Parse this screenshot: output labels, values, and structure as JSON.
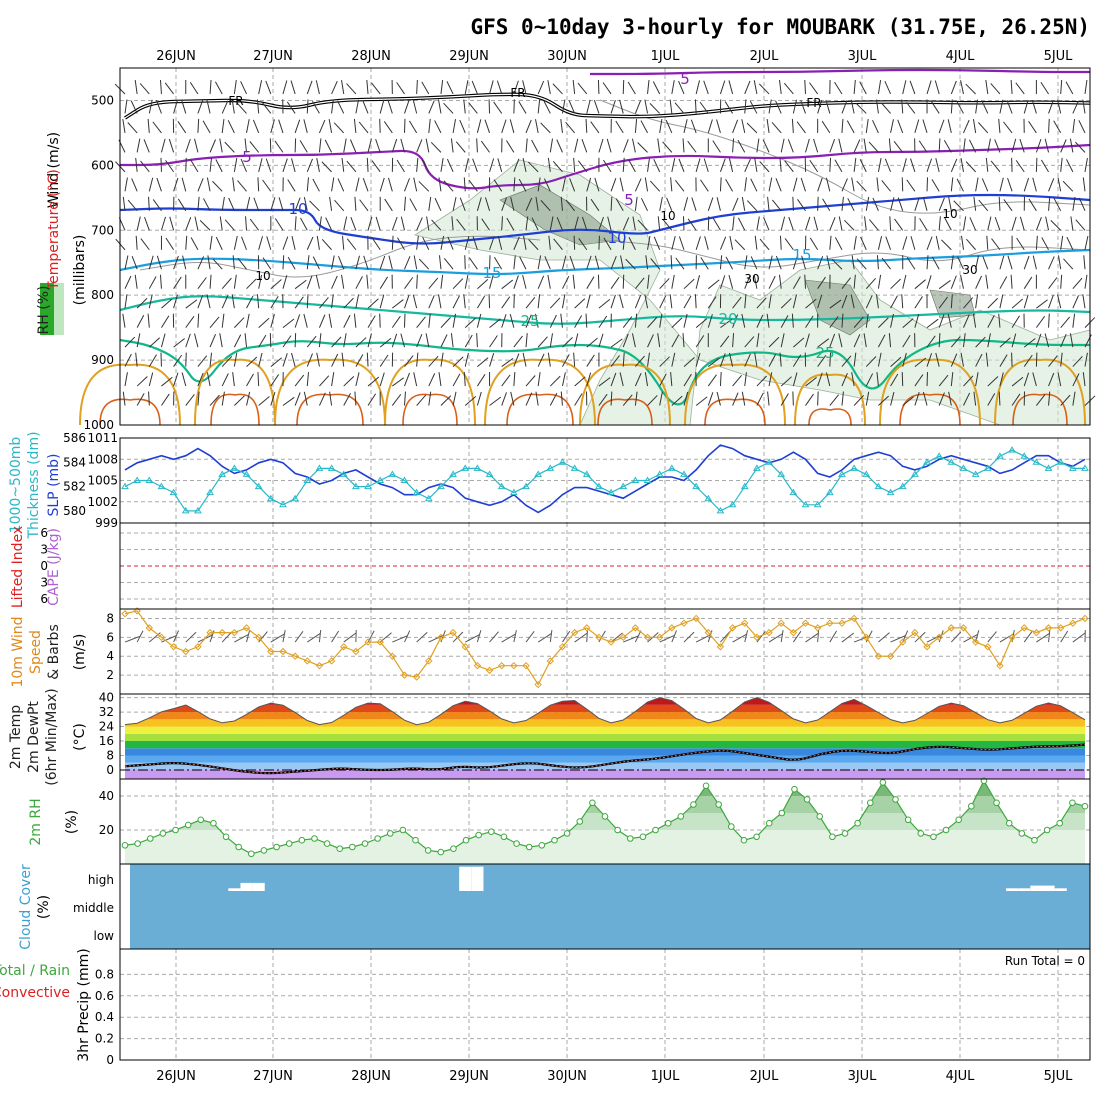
{
  "title": "GFS 0~10day 3-hourly for MOUBARK (31.75E, 26.25N)",
  "dates": [
    "26JUN",
    "27JUN",
    "28JUN",
    "29JUN",
    "30JUN",
    "1JUL",
    "2JUL",
    "3JUL",
    "4JUL",
    "5JUL"
  ],
  "colors": {
    "purple": "#8a1fb4",
    "blue": "#1f3fd4",
    "lightblue": "#1a9ee0",
    "teal": "#16b8a0",
    "green": "#10b888",
    "orange": "#e0a020",
    "darkorange": "#d86018",
    "cyan": "#2ab8c8",
    "rhgreen": "#3da83d",
    "cloud": "#6aaed6",
    "red": "#e02020",
    "gray": "#9a9a9a"
  },
  "panel_labels": {
    "p1_wind": "Wind (m/s)",
    "p1_temp": "Temperature (°C)",
    "p1_rh": "RH (%)",
    "p1_mb": "(millibars)",
    "p2_thick1": "1000~500mb",
    "p2_thick2": "Thickness (dm)",
    "p2_slp": "SLP (mb)",
    "p3_li": "Lifted Index",
    "p3_cape": "CAPE (J/kg)",
    "p4_a": "10m Wind",
    "p4_b": "Speed",
    "p4_c": "& Barbs",
    "p4_unit": "(m/s)",
    "p5_a": "2m Temp",
    "p5_b": "2m DewPt",
    "p5_c": "(6hr Min/Max)",
    "p5_unit": "(°C)",
    "p6_a": "2m RH",
    "p6_unit": "(%)",
    "p7_a": "Cloud Cover",
    "p7_unit": "(%)",
    "p8_a": "Total / Rain",
    "p8_b": "Convective",
    "p8_c": "3hr Precip (mm)",
    "run_total": "Run Total = 0",
    "fr": "FR"
  },
  "chart_data": [
    {
      "panel": "upper-air",
      "type": "contour",
      "yaxis": "pressure (millibars)",
      "yticks": [
        500,
        600,
        700,
        800,
        900,
        1000
      ],
      "ylim": [
        450,
        1000
      ],
      "isotherm_labels": [
        "5",
        "5",
        "5",
        "10",
        "10",
        "15",
        "15",
        "20",
        "25",
        "25"
      ],
      "rh_labels": [
        "10",
        "10",
        "10",
        "30",
        "30"
      ],
      "freezing_level": "FR"
    },
    {
      "panel": "thickness-slp",
      "type": "line",
      "thickness_ylim": [
        579,
        586
      ],
      "thickness_ticks": [
        "580",
        "582",
        "584",
        "586"
      ],
      "slp_ylim": [
        999,
        1011
      ],
      "slp_ticks": [
        "999",
        "1002",
        "1005",
        "1008",
        "1011"
      ],
      "slp": [
        1006.5,
        1007.5,
        1008.0,
        1008.5,
        1008.0,
        1008.5,
        1009.5,
        1008.5,
        1007.0,
        1006.0,
        1006.5,
        1007.5,
        1008.0,
        1007.5,
        1006.0,
        1005.5,
        1004.5,
        1005.0,
        1006.0,
        1006.5,
        1005.5,
        1004.5,
        1004.0,
        1003.0,
        1003.0,
        1004.0,
        1004.5,
        1004.0,
        1002.5,
        1002.0,
        1001.5,
        1002.0,
        1003.0,
        1001.5,
        1000.5,
        1001.5,
        1003.0,
        1004.0,
        1004.0,
        1003.5,
        1003.0,
        1002.5,
        1003.5,
        1004.5,
        1005.5,
        1005.5,
        1005.0,
        1006.5,
        1008.5,
        1010.0,
        1009.5,
        1008.5,
        1008.0,
        1007.5,
        1008.0,
        1009.0,
        1008.0,
        1006.0,
        1005.5,
        1006.5,
        1008.0,
        1008.5,
        1009.0,
        1008.5,
        1007.0,
        1006.5,
        1007.0,
        1008.0,
        1008.5,
        1008.0,
        1007.5,
        1007.0,
        1006.0,
        1006.5,
        1007.5,
        1008.5,
        1008.5,
        1007.5,
        1007.0,
        1008.0
      ],
      "thickness": [
        582.0,
        582.5,
        582.5,
        582.0,
        581.5,
        580.0,
        580.0,
        581.5,
        583.0,
        583.5,
        583.0,
        582.0,
        581.0,
        580.5,
        581.0,
        582.5,
        583.5,
        583.5,
        583.0,
        582.0,
        582.0,
        582.5,
        583.0,
        582.5,
        581.5,
        581.0,
        582.0,
        583.0,
        583.5,
        583.5,
        583.0,
        582.0,
        581.5,
        582.0,
        583.0,
        583.5,
        584.0,
        583.5,
        583.0,
        582.0,
        581.5,
        582.0,
        582.5,
        582.5,
        583.0,
        583.5,
        583.0,
        582.0,
        581.0,
        580.0,
        580.5,
        582.0,
        583.5,
        584.0,
        583.0,
        581.5,
        580.5,
        580.5,
        581.5,
        583.0,
        583.5,
        583.0,
        582.0,
        581.5,
        582.0,
        583.0,
        584.0,
        584.5,
        584.0,
        583.5,
        583.0,
        583.5,
        584.5,
        585.0,
        584.5,
        584.0,
        583.5,
        584.0,
        583.5,
        583.5
      ]
    },
    {
      "panel": "lifted-index-cape",
      "type": "line",
      "li_ticks": [
        "-6",
        "-3",
        "0",
        "3",
        "6"
      ],
      "ylim": [
        6,
        -6
      ],
      "lifted_index": [],
      "cape": []
    },
    {
      "panel": "10m-wind",
      "type": "line",
      "ylim": [
        0,
        9
      ],
      "yticks": [
        "2",
        "4",
        "6",
        "8"
      ],
      "speed": [
        8.5,
        8.8,
        7.0,
        6.0,
        5.0,
        4.5,
        5.0,
        6.5,
        6.5,
        6.5,
        7.0,
        6.0,
        4.5,
        4.5,
        4.0,
        3.5,
        3.0,
        3.5,
        5.0,
        4.5,
        5.5,
        5.5,
        4.0,
        2.0,
        1.8,
        3.5,
        6.0,
        6.5,
        5.0,
        3.0,
        2.5,
        3.0,
        3.0,
        3.0,
        1.0,
        3.5,
        5.0,
        6.5,
        7.0,
        6.0,
        5.5,
        6.0,
        7.0,
        6.0,
        6.0,
        7.0,
        7.5,
        8.0,
        6.5,
        5.0,
        7.0,
        7.5,
        6.0,
        6.5,
        7.5,
        6.5,
        7.5,
        7.0,
        7.5,
        7.5,
        8.0,
        6.0,
        4.0,
        4.0,
        5.5,
        6.5,
        5.0,
        6.0,
        7.0,
        7.0,
        5.5,
        5.0,
        3.0,
        6.0,
        7.0,
        6.5,
        7.0,
        7.0,
        7.5,
        8.0
      ]
    },
    {
      "panel": "2m-temp-dewpt",
      "type": "area",
      "ylim": [
        -5,
        42
      ],
      "yticks": [
        "0",
        "8",
        "16",
        "24",
        "32",
        "40"
      ],
      "temp_max": [
        34,
        37,
        37,
        38,
        38,
        40,
        40,
        39,
        37
      ],
      "temp_min": [
        25,
        26,
        25,
        25,
        26,
        26,
        26,
        26,
        26,
        26
      ],
      "dewpoint": [
        2,
        3,
        4,
        3,
        1,
        -1,
        -2,
        -1,
        0,
        1,
        0,
        0,
        1,
        0,
        2,
        1,
        3,
        4,
        2,
        1,
        3,
        5,
        6,
        8,
        10,
        11,
        9,
        7,
        5,
        9,
        11,
        10,
        9,
        12,
        13,
        12,
        11,
        12,
        13,
        13,
        14
      ]
    },
    {
      "panel": "2m-rh",
      "type": "area",
      "ylim": [
        0,
        50
      ],
      "yticks": [
        "20",
        "40"
      ],
      "rh": [
        11,
        12,
        15,
        18,
        20,
        23,
        26,
        24,
        16,
        10,
        6,
        8,
        10,
        12,
        14,
        15,
        12,
        9,
        10,
        12,
        15,
        18,
        20,
        14,
        8,
        7,
        9,
        14,
        17,
        19,
        16,
        12,
        10,
        11,
        14,
        18,
        25,
        36,
        28,
        20,
        15,
        16,
        20,
        24,
        28,
        35,
        46,
        35,
        22,
        14,
        16,
        24,
        30,
        44,
        38,
        28,
        16,
        18,
        24,
        36,
        48,
        38,
        26,
        18,
        16,
        20,
        26,
        34,
        49,
        36,
        24,
        18,
        14,
        20,
        24,
        36,
        34
      ]
    },
    {
      "panel": "cloud-cover",
      "type": "bar",
      "yticks": [
        "high",
        "middle",
        "low"
      ],
      "high_cloud": [
        0,
        0,
        0,
        0,
        0,
        0,
        0,
        0,
        0,
        10,
        30,
        30,
        0,
        0,
        0,
        0,
        0,
        0,
        0,
        0,
        0,
        0,
        0,
        0,
        0,
        0,
        0,
        0,
        90,
        90,
        0,
        0,
        0,
        0,
        0,
        0,
        0,
        0,
        0,
        0,
        0,
        0,
        0,
        0,
        0,
        0,
        0,
        0,
        0,
        0,
        0,
        0,
        0,
        0,
        0,
        0,
        0,
        0,
        0,
        0,
        0,
        0,
        0,
        0,
        0,
        0,
        0,
        0,
        0,
        0,
        0,
        0,
        0,
        10,
        10,
        20,
        20,
        10,
        0,
        0
      ]
    },
    {
      "panel": "precip",
      "type": "bar",
      "ylim": [
        0,
        1
      ],
      "yticks": [
        "0",
        "0.2",
        "0.4",
        "0.6",
        "0.8"
      ],
      "total_rain": [],
      "convective": [],
      "run_total": "Run Total = 0"
    }
  ]
}
